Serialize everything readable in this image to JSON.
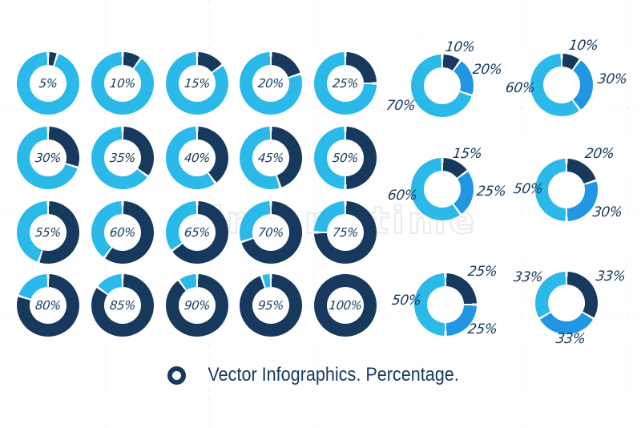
{
  "palette": {
    "background": "#ffffff",
    "cyan": "#2ab9e9",
    "blue": "#2196e3",
    "navy": "#17395e",
    "watermark_line": "#efefef",
    "watermark_outline": "#e7e7e7"
  },
  "watermark": {
    "text": "dreamstime"
  },
  "grid_donuts": [
    {
      "label": "5%",
      "pct": 5
    },
    {
      "label": "10%",
      "pct": 10
    },
    {
      "label": "15%",
      "pct": 15
    },
    {
      "label": "20%",
      "pct": 20
    },
    {
      "label": "25%",
      "pct": 25
    },
    {
      "label": "30%",
      "pct": 30
    },
    {
      "label": "35%",
      "pct": 35
    },
    {
      "label": "40%",
      "pct": 40
    },
    {
      "label": "45%",
      "pct": 45
    },
    {
      "label": "50%",
      "pct": 50
    },
    {
      "label": "55%",
      "pct": 55
    },
    {
      "label": "60%",
      "pct": 60
    },
    {
      "label": "65%",
      "pct": 65
    },
    {
      "label": "70%",
      "pct": 70
    },
    {
      "label": "75%",
      "pct": 75
    },
    {
      "label": "80%",
      "pct": 80
    },
    {
      "label": "85%",
      "pct": 85
    },
    {
      "label": "90%",
      "pct": 90
    },
    {
      "label": "95%",
      "pct": 95
    },
    {
      "label": "100%",
      "pct": 100
    }
  ],
  "right_charts": [
    {
      "name": "donut-10-20-70",
      "segments": [
        {
          "pct": 10,
          "color": "navy"
        },
        {
          "pct": 20,
          "color": "blue"
        },
        {
          "pct": 70,
          "color": "cyan"
        }
      ],
      "labels": [
        {
          "text": "10%",
          "position": "top"
        },
        {
          "text": "20%",
          "position": "right"
        },
        {
          "text": "70%",
          "position": "bottom-left"
        }
      ]
    },
    {
      "name": "donut-10-30-60",
      "segments": [
        {
          "pct": 10,
          "color": "navy"
        },
        {
          "pct": 30,
          "color": "blue"
        },
        {
          "pct": 60,
          "color": "cyan"
        }
      ],
      "labels": [
        {
          "text": "10%",
          "position": "top"
        },
        {
          "text": "30%",
          "position": "right"
        },
        {
          "text": "60%",
          "position": "left"
        }
      ]
    },
    {
      "name": "donut-15-25-60",
      "segments": [
        {
          "pct": 15,
          "color": "navy"
        },
        {
          "pct": 25,
          "color": "blue"
        },
        {
          "pct": 60,
          "color": "cyan"
        }
      ],
      "labels": [
        {
          "text": "15%",
          "position": "top"
        },
        {
          "text": "25%",
          "position": "right"
        },
        {
          "text": "60%",
          "position": "left"
        }
      ]
    },
    {
      "name": "donut-20-30-50",
      "segments": [
        {
          "pct": 20,
          "color": "navy"
        },
        {
          "pct": 30,
          "color": "blue"
        },
        {
          "pct": 50,
          "color": "cyan"
        }
      ],
      "labels": [
        {
          "text": "20%",
          "position": "top-right"
        },
        {
          "text": "30%",
          "position": "bottom-right"
        },
        {
          "text": "50%",
          "position": "left"
        }
      ]
    },
    {
      "name": "donut-25-25-50",
      "segments": [
        {
          "pct": 25,
          "color": "navy"
        },
        {
          "pct": 25,
          "color": "blue"
        },
        {
          "pct": 50,
          "color": "cyan"
        }
      ],
      "labels": [
        {
          "text": "25%",
          "position": "top-right"
        },
        {
          "text": "25%",
          "position": "bottom-right"
        },
        {
          "text": "50%",
          "position": "left"
        }
      ]
    },
    {
      "name": "donut-33-33-33",
      "segments": [
        {
          "pct": 33.33,
          "color": "navy"
        },
        {
          "pct": 33.33,
          "color": "blue"
        },
        {
          "pct": 33.34,
          "color": "cyan"
        }
      ],
      "labels": [
        {
          "text": "33%",
          "position": "top-left"
        },
        {
          "text": "33%",
          "position": "top-right"
        },
        {
          "text": "33%",
          "position": "bottom"
        }
      ]
    }
  ],
  "caption": {
    "icon": "donut-ring-icon",
    "text": "Vector Infographics. Percentage."
  },
  "chart_data": [
    {
      "type": "pie",
      "title": "Percentage donut scale",
      "values": [
        5,
        10,
        15,
        20,
        25,
        30,
        35,
        40,
        45,
        50,
        55,
        60,
        65,
        70,
        75,
        80,
        85,
        90,
        95,
        100
      ],
      "note": "20 donut charts; each shows its value as a dark navy arc clockwise from 12 o'clock, remainder light blue; value label centered in hole"
    },
    {
      "type": "pie",
      "values": [
        10,
        20,
        70
      ],
      "labels": [
        "10%",
        "20%",
        "70%"
      ],
      "colors": [
        "navy",
        "blue",
        "cyan"
      ]
    },
    {
      "type": "pie",
      "values": [
        10,
        30,
        60
      ],
      "labels": [
        "10%",
        "30%",
        "60%"
      ],
      "colors": [
        "navy",
        "blue",
        "cyan"
      ]
    },
    {
      "type": "pie",
      "values": [
        15,
        25,
        60
      ],
      "labels": [
        "15%",
        "25%",
        "60%"
      ],
      "colors": [
        "navy",
        "blue",
        "cyan"
      ]
    },
    {
      "type": "pie",
      "values": [
        20,
        30,
        50
      ],
      "labels": [
        "20%",
        "30%",
        "50%"
      ],
      "colors": [
        "navy",
        "blue",
        "cyan"
      ]
    },
    {
      "type": "pie",
      "values": [
        25,
        25,
        50
      ],
      "labels": [
        "25%",
        "25%",
        "50%"
      ],
      "colors": [
        "navy",
        "blue",
        "cyan"
      ]
    },
    {
      "type": "pie",
      "values": [
        33,
        33,
        33
      ],
      "labels": [
        "33%",
        "33%",
        "33%"
      ],
      "colors": [
        "navy",
        "blue",
        "cyan"
      ]
    }
  ]
}
